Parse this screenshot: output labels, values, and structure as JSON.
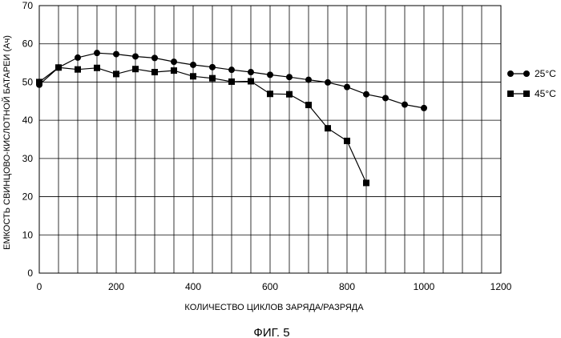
{
  "chart_data": {
    "type": "line",
    "xlabel": "КОЛИЧЕСТВО ЦИКЛОВ ЗАРЯДА/РАЗРЯДА",
    "ylabel": "ЕМКОСТЬ СВИНЦОВО-КИСЛОТНОЙ БАТАРЕИ (Ач)",
    "xlim": [
      0,
      1200
    ],
    "ylim": [
      0,
      70
    ],
    "x_ticks": [
      0,
      200,
      400,
      600,
      800,
      1000,
      1200
    ],
    "y_ticks": [
      0,
      10,
      20,
      30,
      40,
      50,
      60,
      70
    ],
    "grid": true,
    "legend_position": "right",
    "series": [
      {
        "name": "25°C",
        "marker": "circle",
        "x": [
          0,
          50,
          100,
          150,
          200,
          250,
          300,
          350,
          400,
          450,
          500,
          550,
          600,
          650,
          700,
          750,
          800,
          850,
          900,
          950,
          1000
        ],
        "y": [
          49.3,
          53.8,
          56.4,
          57.6,
          57.3,
          56.7,
          56.3,
          55.3,
          54.5,
          53.9,
          53.2,
          52.6,
          51.9,
          51.3,
          50.6,
          49.9,
          48.7,
          46.8,
          45.8,
          44.1,
          43.2
        ]
      },
      {
        "name": "45°C",
        "marker": "square",
        "x": [
          0,
          50,
          100,
          150,
          200,
          250,
          300,
          350,
          400,
          450,
          500,
          550,
          600,
          650,
          700,
          750,
          800,
          850
        ],
        "y": [
          50.0,
          53.8,
          53.3,
          53.7,
          52.1,
          53.4,
          52.6,
          53.0,
          51.5,
          51.0,
          50.1,
          50.2,
          46.9,
          46.8,
          44.0,
          37.9,
          34.6,
          23.6
        ]
      }
    ]
  },
  "figure_caption": "ФИГ. 5"
}
